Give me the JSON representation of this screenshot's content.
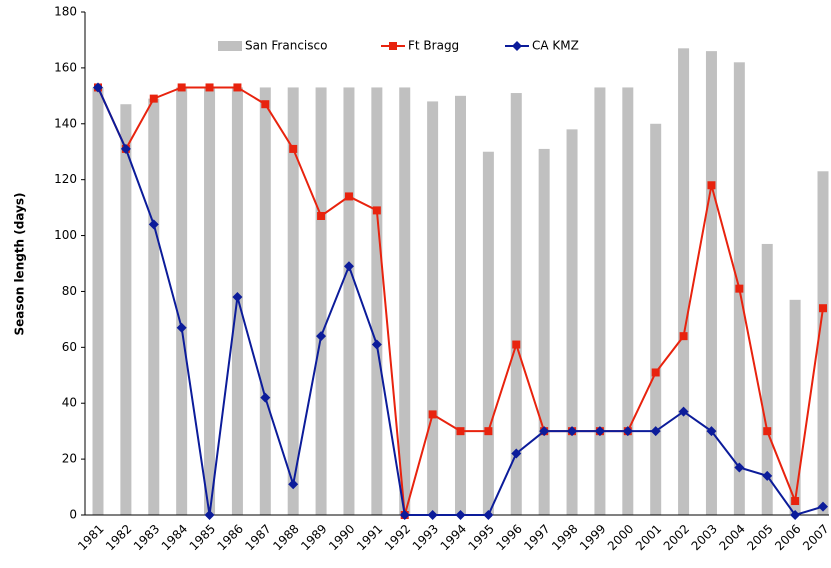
{
  "chart_data": {
    "type": "bar",
    "ylabel": "Season length (days)",
    "categories": [
      "1981",
      "1982",
      "1983",
      "1984",
      "1985",
      "1986",
      "1987",
      "1988",
      "1989",
      "1990",
      "1991",
      "1992",
      "1993",
      "1994",
      "1995",
      "1996",
      "1997",
      "1998",
      "1999",
      "2000",
      "2001",
      "2002",
      "2003",
      "2004",
      "2005",
      "2006",
      "2007"
    ],
    "series": [
      {
        "name": "San Francisco",
        "type": "bar",
        "color": "#c0c0c0",
        "values": [
          153,
          147,
          149,
          153,
          153,
          153,
          153,
          153,
          153,
          153,
          153,
          153,
          148,
          150,
          130,
          151,
          131,
          138,
          153,
          153,
          140,
          167,
          166,
          162,
          97,
          77,
          123
        ]
      },
      {
        "name": "Ft Bragg",
        "type": "line",
        "marker": "square",
        "color": "#e8230e",
        "values": [
          153,
          131,
          149,
          153,
          153,
          153,
          147,
          131,
          107,
          114,
          109,
          0,
          36,
          30,
          30,
          61,
          30,
          30,
          30,
          30,
          51,
          64,
          118,
          81,
          30,
          5,
          74
        ]
      },
      {
        "name": "CA KMZ",
        "type": "line",
        "marker": "diamond",
        "color": "#0c1c9a",
        "values": [
          153,
          131,
          104,
          67,
          0,
          78,
          42,
          11,
          64,
          89,
          61,
          0,
          0,
          0,
          0,
          22,
          30,
          30,
          30,
          30,
          30,
          37,
          30,
          17,
          14,
          0,
          3
        ]
      }
    ],
    "ylim": [
      0,
      180
    ],
    "yticks": [
      0,
      20,
      40,
      60,
      80,
      100,
      120,
      140,
      160,
      180
    ],
    "grid": false
  }
}
